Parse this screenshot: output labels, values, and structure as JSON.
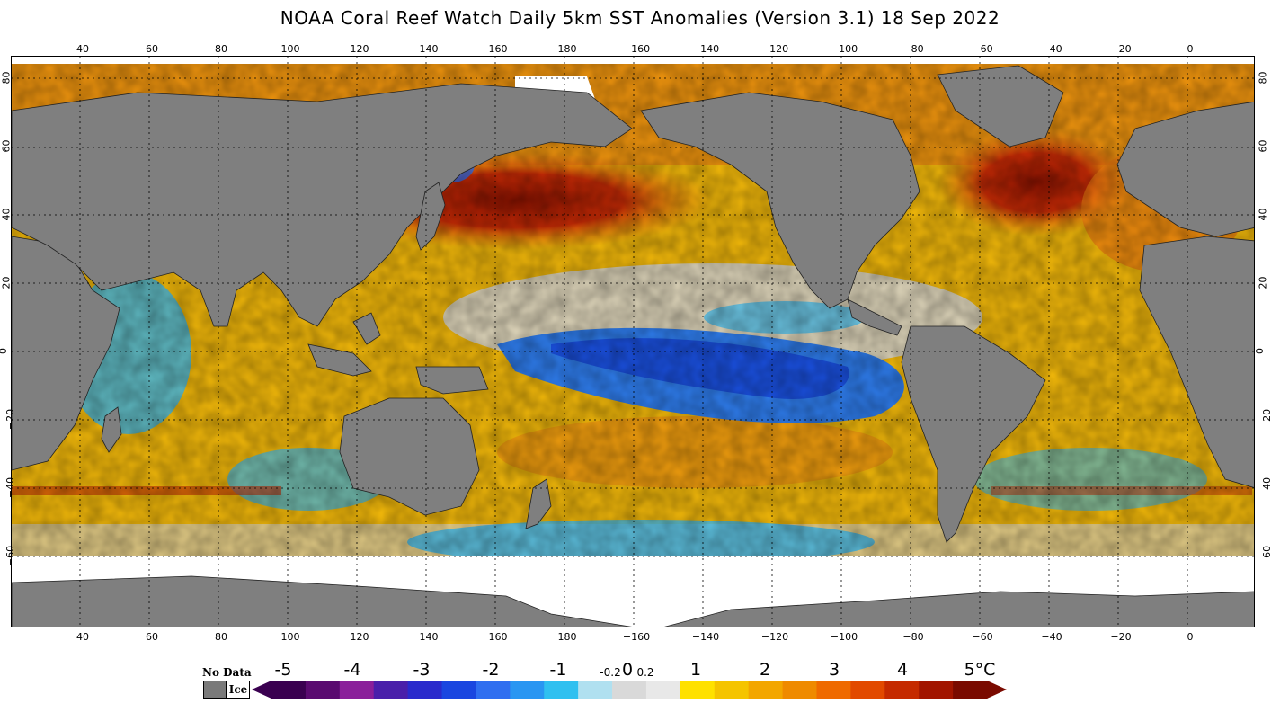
{
  "title": "NOAA Coral Reef Watch Daily 5km SST Anomalies (Version 3.1)  18 Sep 2022",
  "map": {
    "lon_labels": [
      "40",
      "60",
      "80",
      "100",
      "120",
      "140",
      "160",
      "180",
      "−160",
      "−140",
      "−120",
      "−100",
      "−80",
      "−60",
      "−40",
      "−20",
      "0"
    ],
    "lat_labels": [
      "80",
      "60",
      "40",
      "20",
      "0",
      "−20",
      "−40",
      "−60"
    ],
    "ocean_colors": {
      "ocean_warm": "#f5c400",
      "ocean_hot": "#ef7a10",
      "ocean_very_hot": "#c0200a",
      "ocean_neutral": "#d9d9d9",
      "ocean_cool": "#32b8ee",
      "ocean_cold": "#1a56e0",
      "land": "#7f7f7f",
      "ice": "#ffffff"
    }
  },
  "legend": {
    "no_data_label": "No Data",
    "ice_label": "Ice",
    "ticks": [
      "-5",
      "-4",
      "-3",
      "-2",
      "-1",
      "-0.2",
      "0",
      "0.2",
      "1",
      "2",
      "3",
      "4",
      "5°C"
    ],
    "colors": [
      "#3a0050",
      "#5a0a70",
      "#8a1f9a",
      "#4a1faa",
      "#2a2acc",
      "#1a46e0",
      "#2f6ef0",
      "#2996f2",
      "#2fc0f0",
      "#b0e0f0",
      "#d9d9d9",
      "#e8e8e8",
      "#ffe100",
      "#f5c400",
      "#f3a600",
      "#ef8a00",
      "#ef6a00",
      "#e24a00",
      "#c52a00",
      "#a21500",
      "#7a0a00"
    ]
  }
}
